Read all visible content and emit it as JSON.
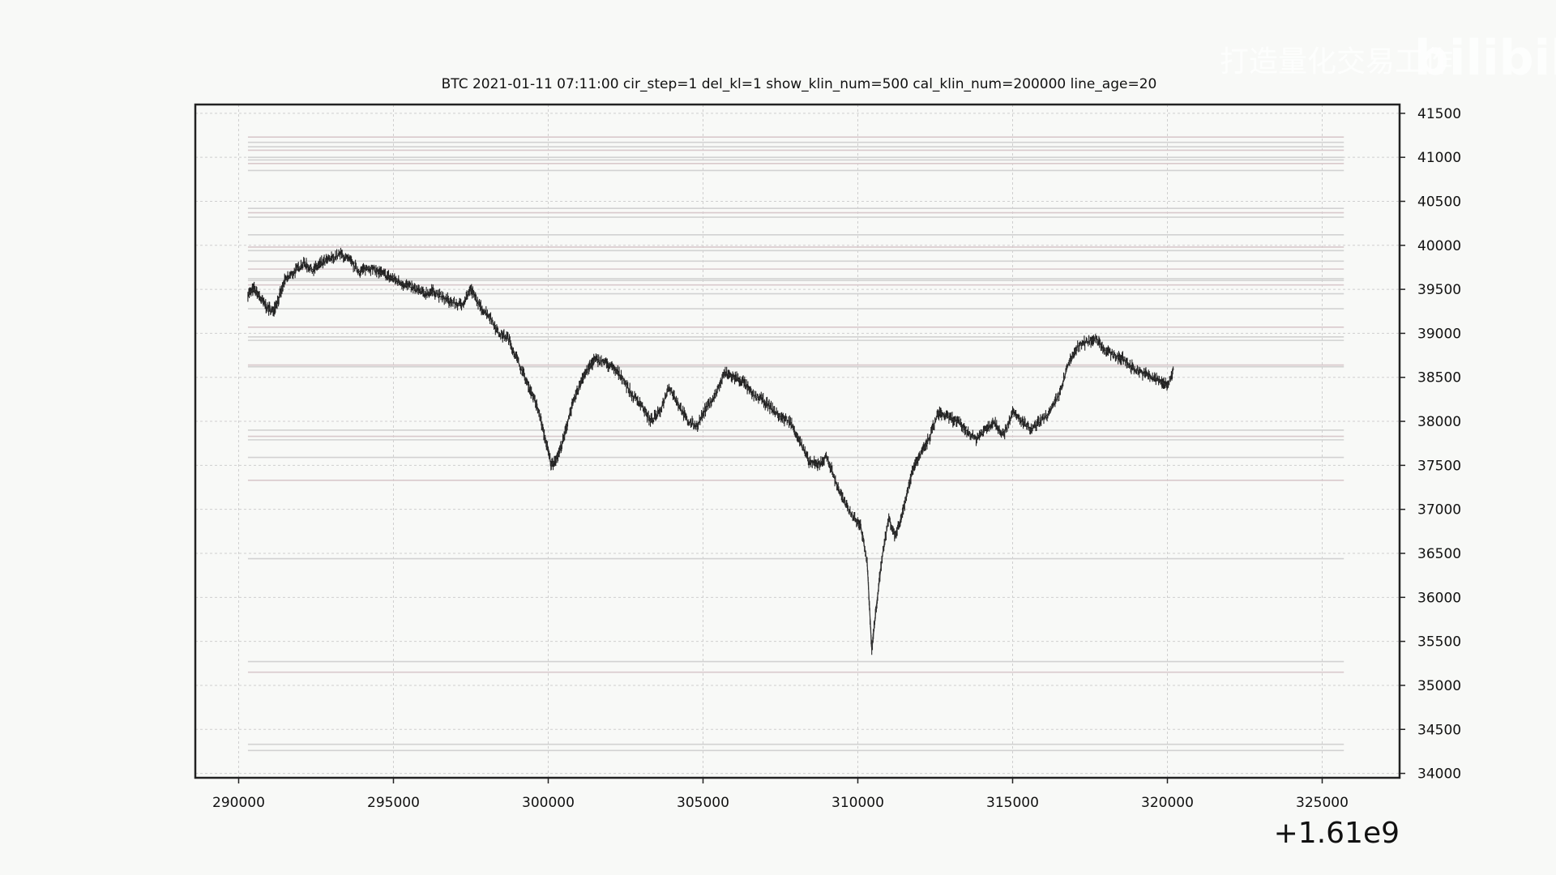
{
  "chart_data": {
    "type": "line",
    "title": "BTC    2021-01-11 07:11:00 cir_step=1 del_kl=1 show_klin_num=500 cal_klin_num=200000 line_age=20",
    "xlabel": "",
    "ylabel": "",
    "x_offset_label": "+1.61e9",
    "xlim": [
      288600,
      327500
    ],
    "ylim": [
      33950,
      41600
    ],
    "x_ticks": [
      290000,
      295000,
      300000,
      305000,
      310000,
      315000,
      320000,
      325000
    ],
    "x_tick_labels": [
      "290000",
      "295000",
      "300000",
      "305000",
      "310000",
      "315000",
      "320000",
      "325000"
    ],
    "y_ticks": [
      34000,
      34500,
      35000,
      35500,
      36000,
      36500,
      37000,
      37500,
      38000,
      38500,
      39000,
      39500,
      40000,
      40500,
      41000,
      41500
    ],
    "y_tick_labels": [
      "34000",
      "34500",
      "35000",
      "35500",
      "36000",
      "36500",
      "37000",
      "37500",
      "38000",
      "38500",
      "39000",
      "39500",
      "40000",
      "40500",
      "41000",
      "41500"
    ],
    "y_axis_side": "right",
    "grid": true,
    "levels_x_range": [
      290300,
      325700
    ],
    "levels": [
      41230,
      41170,
      41120,
      41080,
      41000,
      40970,
      40930,
      40850,
      40420,
      40370,
      40320,
      40120,
      39980,
      39940,
      39820,
      39730,
      39620,
      39600,
      39550,
      39450,
      39280,
      39070,
      38960,
      38920,
      38640,
      38620,
      37900,
      37830,
      37790,
      37590,
      37330,
      36440,
      35270,
      35150,
      34330,
      34260
    ],
    "series": [
      {
        "x": [
          290300,
          290500,
          290700,
          290900,
          291100,
          291300,
          291500,
          291800,
          292100,
          292400,
          292700,
          293000,
          293300,
          293600,
          293900,
          294200,
          294500,
          294800,
          295100,
          295400,
          295700,
          296000,
          296300,
          296600,
          296900,
          297200,
          297500,
          297800,
          298100,
          298400,
          298700,
          299000,
          299300,
          299500,
          299700,
          299900,
          300100,
          300300,
          300500,
          300700,
          300900,
          301100,
          301300,
          301500,
          301800,
          302100,
          302400,
          302700,
          303000,
          303300,
          303600,
          303900,
          304200,
          304500,
          304800,
          305100,
          305400,
          305700,
          306000,
          306300,
          306600,
          306900,
          307200,
          307500,
          307800,
          308100,
          308400,
          308700,
          309000,
          309300,
          309600,
          309900,
          310100,
          310300,
          310450,
          310600,
          310800,
          311000,
          311200,
          311400,
          311600,
          311800,
          312000,
          312300,
          312600,
          312900,
          313200,
          313500,
          313800,
          314100,
          314400,
          314700,
          315000,
          315300,
          315600,
          315900,
          316200,
          316500,
          316800,
          317100,
          317400,
          317700,
          318000,
          318300,
          318600,
          318900,
          319200,
          319500,
          319800,
          320000,
          320200
        ],
        "y": [
          39450,
          39500,
          39400,
          39300,
          39250,
          39400,
          39600,
          39700,
          39800,
          39720,
          39800,
          39850,
          39900,
          39820,
          39700,
          39750,
          39700,
          39650,
          39600,
          39550,
          39500,
          39450,
          39480,
          39400,
          39350,
          39320,
          39500,
          39300,
          39200,
          39000,
          38950,
          38700,
          38450,
          38300,
          38100,
          37800,
          37500,
          37600,
          37800,
          38100,
          38300,
          38500,
          38600,
          38700,
          38680,
          38600,
          38500,
          38300,
          38200,
          38000,
          38100,
          38400,
          38200,
          38000,
          37950,
          38150,
          38300,
          38550,
          38500,
          38450,
          38300,
          38250,
          38150,
          38050,
          38000,
          37800,
          37550,
          37500,
          37600,
          37300,
          37050,
          36900,
          36800,
          36400,
          35400,
          35900,
          36500,
          36900,
          36700,
          36900,
          37200,
          37500,
          37600,
          37800,
          38100,
          38050,
          38000,
          37900,
          37800,
          37900,
          38000,
          37850,
          38100,
          38000,
          37900,
          38000,
          38100,
          38300,
          38650,
          38850,
          38900,
          38950,
          38800,
          38750,
          38700,
          38600,
          38550,
          38500,
          38450,
          38400,
          38600
        ]
      }
    ]
  },
  "watermark": {
    "text_left": "打造量化交易工作",
    "logo_text": "bilibili"
  }
}
